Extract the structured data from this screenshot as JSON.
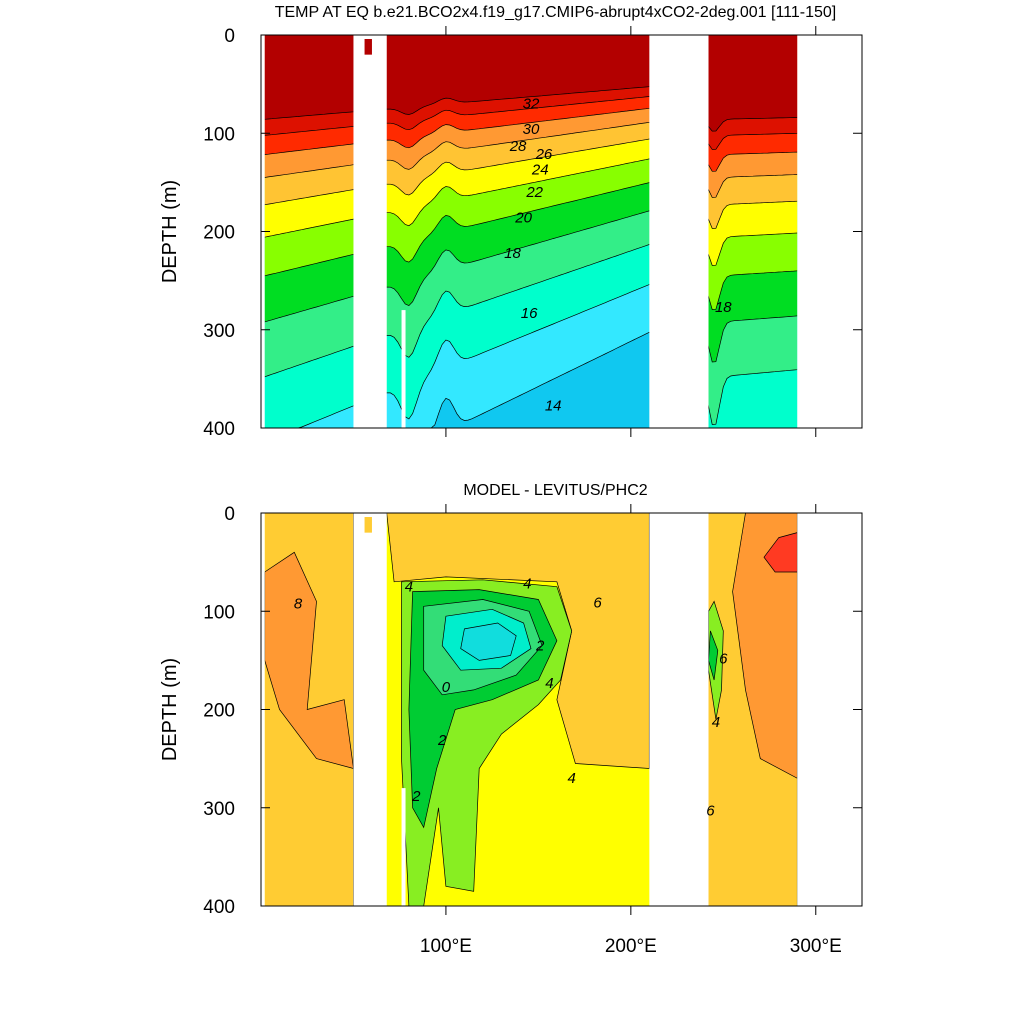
{
  "chart_data": [
    {
      "type": "contour",
      "title": "TEMP AT EQ b.e21.BCO2x4.f19_g17.CMIP6-abrupt4xCO2-2deg.001 [111-150]",
      "y_label": "DEPTH (m)",
      "xlim": [
        0,
        325
      ],
      "ylim": [
        400,
        0
      ],
      "xticks": [
        100,
        200,
        300
      ],
      "show_xtick_labels": false,
      "yticks": [
        0,
        100,
        200,
        300,
        400
      ],
      "levels": [
        12,
        14,
        16,
        18,
        20,
        22,
        24,
        26,
        28,
        30,
        32
      ],
      "colors": [
        "#10c8f0",
        "#33e8ff",
        "#00ffcc",
        "#33ee88",
        "#00dd22",
        "#88ff00",
        "#ffff00",
        "#ffc433",
        "#ff9933",
        "#ff2a00",
        "#dd1100",
        "#b30000"
      ],
      "contour_labels": [
        32,
        30,
        28,
        26,
        24,
        22,
        20,
        18,
        16,
        14,
        18
      ]
    },
    {
      "type": "contour",
      "title": "MODEL - LEVITUS/PHC2",
      "y_label": "DEPTH (m)",
      "xlim": [
        0,
        325
      ],
      "ylim": [
        400,
        0
      ],
      "xticks": [
        {
          "value": 100,
          "label": "100°E"
        },
        {
          "value": 200,
          "label": "200°E"
        },
        {
          "value": 300,
          "label": "300°E"
        }
      ],
      "show_xtick_labels": true,
      "yticks": [
        0,
        100,
        200,
        300,
        400
      ],
      "levels": [
        -4,
        -2,
        0,
        2,
        4,
        6,
        8,
        10
      ],
      "colors": [
        "#11dddd",
        "#00eecc",
        "#33dd77",
        "#00cc33",
        "#88ee22",
        "#ffff00",
        "#ffcc33",
        "#ff9933",
        "#ff3a22"
      ],
      "contour_labels": [
        8,
        4,
        4,
        6,
        2,
        0,
        4,
        2,
        4,
        2,
        6,
        4,
        6
      ]
    }
  ]
}
